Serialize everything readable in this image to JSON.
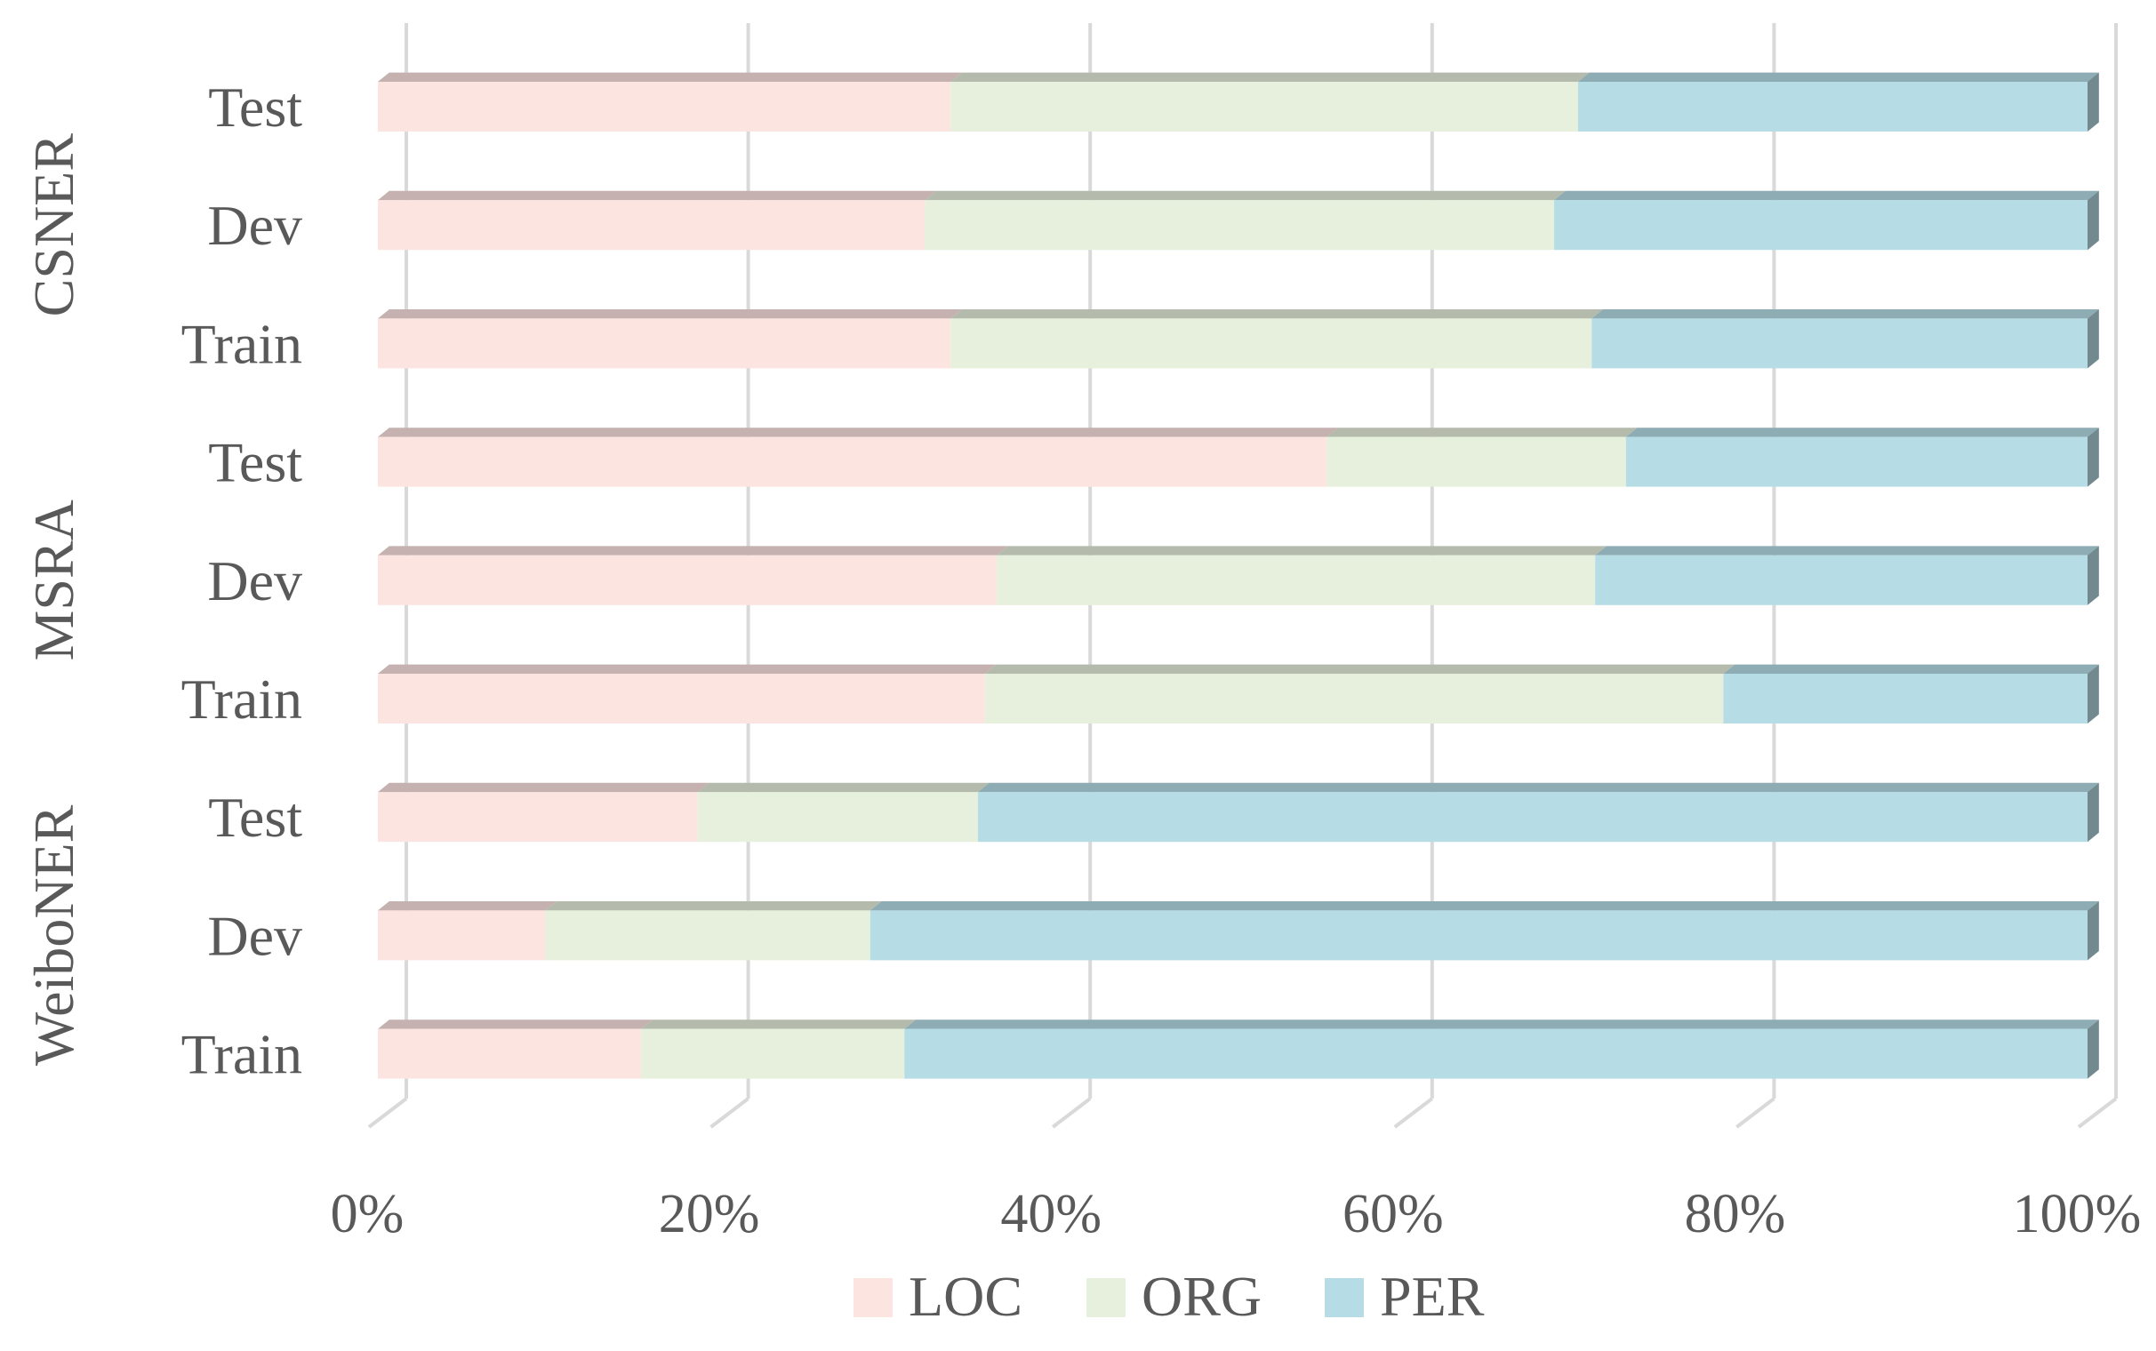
{
  "chart_data": {
    "type": "bar",
    "orientation": "horizontal",
    "stacked": "percent",
    "style": "3d",
    "groups": [
      "CSNER",
      "MSRA",
      "WeiboNER"
    ],
    "categories": [
      {
        "group": "CSNER",
        "label": "Test"
      },
      {
        "group": "CSNER",
        "label": "Dev"
      },
      {
        "group": "CSNER",
        "label": "Train"
      },
      {
        "group": "MSRA",
        "label": "Test"
      },
      {
        "group": "MSRA",
        "label": "Dev"
      },
      {
        "group": "MSRA",
        "label": "Train"
      },
      {
        "group": "WeiboNER",
        "label": "Test"
      },
      {
        "group": "WeiboNER",
        "label": "Dev"
      },
      {
        "group": "WeiboNER",
        "label": "Train"
      }
    ],
    "series": [
      {
        "name": "LOC",
        "color": "#FCE4E1",
        "values": [
          33.5,
          32,
          33.5,
          55.5,
          36.2,
          35.5,
          18.7,
          9.8,
          15.4
        ]
      },
      {
        "name": "ORG",
        "color": "#E7F0DC",
        "values": [
          36.7,
          36.8,
          37.5,
          17.5,
          35,
          43.2,
          16.4,
          19,
          15.4
        ]
      },
      {
        "name": "PER",
        "color": "#B6DDE6",
        "values": [
          29.8,
          31.2,
          29,
          27,
          28.8,
          21.3,
          64.9,
          71.2,
          69.2
        ]
      }
    ],
    "x_ticks": [
      "0%",
      "20%",
      "40%",
      "60%",
      "80%",
      "100%"
    ],
    "xlim": [
      0,
      100
    ],
    "grid": true,
    "legend_position": "bottom"
  }
}
